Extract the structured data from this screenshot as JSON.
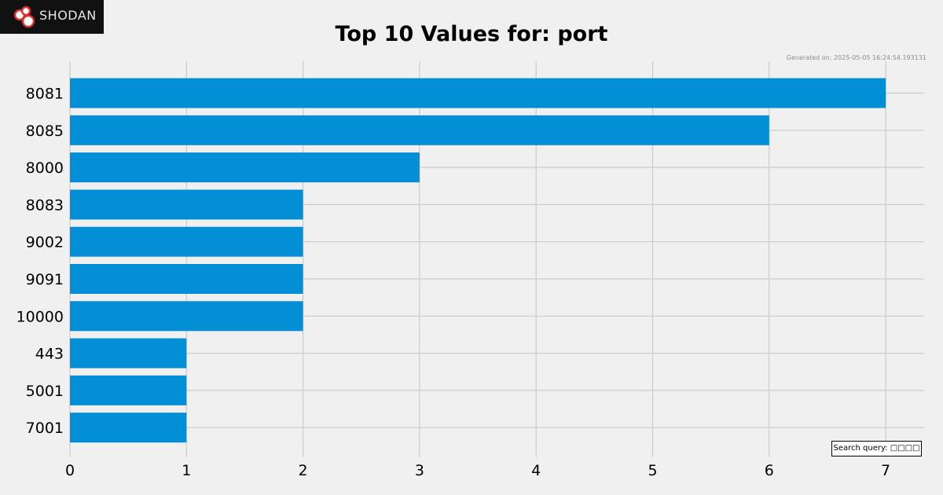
{
  "brand": {
    "name": "Shodan",
    "logo_text": "SHODAN"
  },
  "header": {
    "title": "Top 10 Values for: port",
    "generated": "Generated on: 2025-05-05 16:24:54.193131"
  },
  "search_query": {
    "label": "Search query:",
    "value": "□□□□",
    "text": "Search query: □□□□"
  },
  "colors": {
    "bar": "#038fd6",
    "grid": "#cbcbcb",
    "background": "#f0f0f0"
  },
  "chart_data": {
    "type": "bar",
    "orientation": "horizontal",
    "title": "Top 10 Values for: port",
    "xlabel": "",
    "ylabel": "",
    "categories": [
      "8081",
      "8085",
      "8000",
      "8083",
      "9002",
      "9091",
      "10000",
      "443",
      "5001",
      "7001"
    ],
    "values": [
      7,
      6,
      3,
      2,
      2,
      2,
      2,
      1,
      1,
      1
    ],
    "xticks": [
      0,
      1,
      2,
      3,
      4,
      5,
      6,
      7
    ],
    "xlim": [
      0,
      7.3
    ],
    "grid": true
  }
}
